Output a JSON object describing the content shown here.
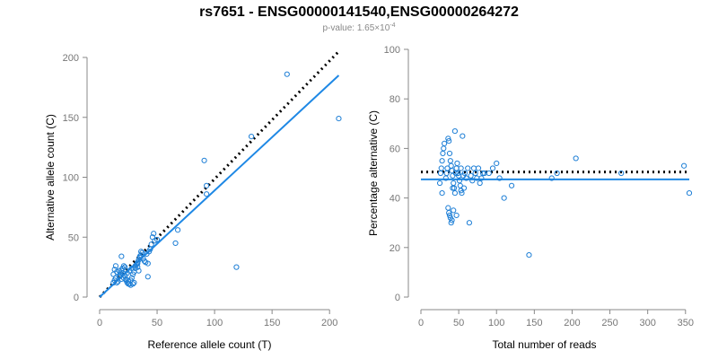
{
  "header": {
    "title": "rs7651 - ENSG00000141540,ENSG00000264272",
    "pvalue_prefix": "p-value: 1.65×10",
    "pvalue_exponent": "-4"
  },
  "colors": {
    "points": "#1e7fd6",
    "fit_line": "#1e88e5",
    "reference_line": "#000000",
    "axis": "#888888"
  },
  "chart_data": [
    {
      "type": "scatter",
      "xlabel": "Reference allele count (T)",
      "ylabel": "Alternative allele count (C)",
      "xlim": [
        0,
        210
      ],
      "ylim": [
        0,
        200
      ],
      "xticks": [
        0,
        50,
        100,
        150,
        200
      ],
      "yticks": [
        0,
        50,
        100,
        150,
        200
      ],
      "grid": false,
      "points": [
        [
          12,
          12
        ],
        [
          13,
          14
        ],
        [
          14,
          16
        ],
        [
          12,
          19
        ],
        [
          15,
          21
        ],
        [
          13,
          23
        ],
        [
          14,
          26
        ],
        [
          15,
          12
        ],
        [
          16,
          13
        ],
        [
          17,
          17
        ],
        [
          18,
          20
        ],
        [
          19,
          22
        ],
        [
          20,
          24
        ],
        [
          21,
          26
        ],
        [
          22,
          18
        ],
        [
          23,
          15
        ],
        [
          24,
          12
        ],
        [
          25,
          13
        ],
        [
          26,
          11
        ],
        [
          27,
          14
        ],
        [
          28,
          16
        ],
        [
          29,
          19
        ],
        [
          30,
          21
        ],
        [
          31,
          24
        ],
        [
          32,
          27
        ],
        [
          33,
          29
        ],
        [
          34,
          31
        ],
        [
          35,
          33
        ],
        [
          36,
          35
        ],
        [
          37,
          37
        ],
        [
          38,
          32
        ],
        [
          39,
          30
        ],
        [
          40,
          29
        ],
        [
          41,
          36
        ],
        [
          42,
          28
        ],
        [
          43,
          38
        ],
        [
          44,
          40
        ],
        [
          45,
          44
        ],
        [
          46,
          50
        ],
        [
          47,
          53
        ],
        [
          48,
          47
        ],
        [
          50,
          48
        ],
        [
          29,
          11
        ],
        [
          27,
          10
        ],
        [
          25,
          11
        ],
        [
          30,
          12
        ],
        [
          33,
          25
        ],
        [
          35,
          34
        ],
        [
          36,
          38
        ],
        [
          19,
          34
        ],
        [
          17,
          22
        ],
        [
          18,
          18
        ],
        [
          20,
          20
        ],
        [
          22,
          25
        ],
        [
          24,
          20
        ],
        [
          26,
          22
        ],
        [
          28,
          24
        ],
        [
          31,
          26
        ],
        [
          33,
          28
        ],
        [
          34,
          22
        ],
        [
          19,
          15
        ],
        [
          21,
          16
        ],
        [
          23,
          14
        ],
        [
          42,
          17
        ],
        [
          66,
          45
        ],
        [
          68,
          56
        ],
        [
          91,
          114
        ],
        [
          93,
          86
        ],
        [
          93,
          93
        ],
        [
          119,
          25
        ],
        [
          132,
          134
        ],
        [
          163,
          186
        ],
        [
          208,
          149
        ]
      ],
      "fit_line": [
        [
          0,
          0
        ],
        [
          208,
          185
        ]
      ],
      "reference_line": [
        [
          0,
          0
        ],
        [
          208,
          205
        ]
      ]
    },
    {
      "type": "scatter",
      "xlabel": "Total number of reads",
      "ylabel": "Percentage alternative (C)",
      "xlim": [
        0,
        355
      ],
      "ylim": [
        0,
        100
      ],
      "xticks": [
        0,
        50,
        100,
        150,
        200,
        250,
        300,
        350
      ],
      "yticks": [
        0,
        20,
        40,
        60,
        80,
        100
      ],
      "grid": false,
      "points": [
        [
          25,
          46
        ],
        [
          26,
          50
        ],
        [
          27,
          52
        ],
        [
          28,
          55
        ],
        [
          29,
          58
        ],
        [
          30,
          60
        ],
        [
          31,
          62
        ],
        [
          28,
          42
        ],
        [
          33,
          48
        ],
        [
          34,
          50
        ],
        [
          35,
          52
        ],
        [
          36,
          64
        ],
        [
          37,
          63
        ],
        [
          38,
          58
        ],
        [
          39,
          55
        ],
        [
          40,
          53
        ],
        [
          41,
          51
        ],
        [
          42,
          49
        ],
        [
          43,
          46
        ],
        [
          44,
          44
        ],
        [
          45,
          42
        ],
        [
          46,
          50
        ],
        [
          47,
          52
        ],
        [
          48,
          54
        ],
        [
          49,
          50
        ],
        [
          50,
          49
        ],
        [
          51,
          47
        ],
        [
          52,
          45
        ],
        [
          53,
          43
        ],
        [
          54,
          42
        ],
        [
          55,
          65
        ],
        [
          57,
          44
        ],
        [
          58,
          50
        ],
        [
          60,
          48
        ],
        [
          62,
          52
        ],
        [
          64,
          30
        ],
        [
          66,
          49
        ],
        [
          68,
          47
        ],
        [
          70,
          52
        ],
        [
          72,
          50
        ],
        [
          74,
          48
        ],
        [
          76,
          52
        ],
        [
          78,
          46
        ],
        [
          80,
          48
        ],
        [
          82,
          50
        ],
        [
          84,
          50
        ],
        [
          90,
          50
        ],
        [
          95,
          52
        ],
        [
          100,
          54
        ],
        [
          104,
          48
        ],
        [
          110,
          40
        ],
        [
          120,
          45
        ],
        [
          143,
          17
        ],
        [
          173,
          48
        ],
        [
          180,
          50
        ],
        [
          205,
          56
        ],
        [
          265,
          50
        ],
        [
          348,
          53
        ],
        [
          355,
          42
        ],
        [
          36,
          36
        ],
        [
          37,
          34
        ],
        [
          38,
          33
        ],
        [
          39,
          32
        ],
        [
          40,
          30
        ],
        [
          41,
          31
        ],
        [
          42,
          44
        ],
        [
          43,
          35
        ],
        [
          45,
          67
        ],
        [
          47,
          33
        ],
        [
          49,
          50
        ],
        [
          53,
          52
        ],
        [
          56,
          49
        ]
      ],
      "fit_line": [
        [
          0,
          47.5
        ],
        [
          355,
          47.5
        ]
      ],
      "reference_line": [
        [
          0,
          50.5
        ],
        [
          355,
          50.5
        ]
      ]
    }
  ]
}
